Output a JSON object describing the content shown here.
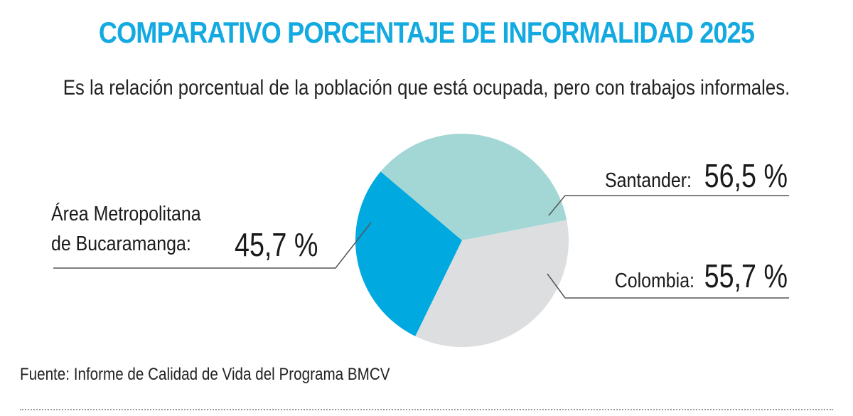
{
  "colors": {
    "title": "#13a9e1",
    "amb": "#00a9e0",
    "santander": "#a2d7d5",
    "colombia": "#dcdee0",
    "leader": "#555555"
  },
  "chart_data": {
    "type": "pie",
    "title": "COMPARATIVO PORCENTAJE DE INFORMALIDAD 2025",
    "subtitle": "Es la relación porcentual de la población que está ocupada, pero con trabajos informales.",
    "unit": "%",
    "slices": [
      {
        "name_lines": [
          "Área Metropolitana",
          "de Bucaramanga:"
        ],
        "value": 45.7,
        "value_label": "45,7 %"
      },
      {
        "name_lines": [
          "Santander:"
        ],
        "value": 56.5,
        "value_label": "56,5 %"
      },
      {
        "name_lines": [
          "Colombia:"
        ],
        "value": 55.7,
        "value_label": "55,7 %"
      }
    ],
    "source": "Fuente: Informe de Calidad de Vida del Programa BMCV"
  }
}
